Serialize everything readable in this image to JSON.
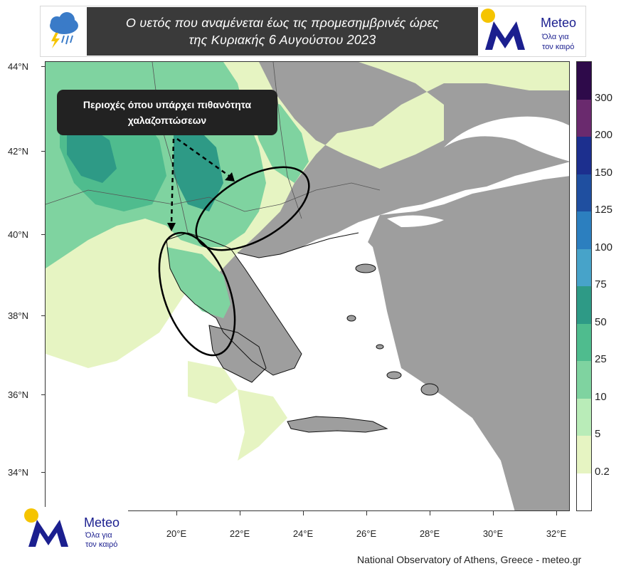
{
  "header": {
    "title_line1": "Ο υετός που αναμένεται έως τις προμεσημβρινές ώρες",
    "title_line2": "της Κυριακής 6 Αυγούστου 2023"
  },
  "logo": {
    "brand": "Meteo",
    "tagline_line1": "Όλα για",
    "tagline_line2": "τον καιρό"
  },
  "annotation": {
    "line1": "Περιοχές όπου υπάρχει πιθανότητα",
    "line2": "χαλαζοπτώσεων"
  },
  "axes": {
    "lat_labels": [
      "44°N",
      "42°N",
      "40°N",
      "38°N",
      "36°N",
      "34°N"
    ],
    "lon_labels": [
      "20°E",
      "22°E",
      "24°E",
      "26°E",
      "28°E",
      "30°E",
      "32°E"
    ]
  },
  "legend": {
    "labels": [
      "300",
      "200",
      "150",
      "125",
      "100",
      "75",
      "50",
      "25",
      "10",
      "5",
      "0.2"
    ],
    "colors": [
      "#2e0a4a",
      "#6a2a6e",
      "#1c2f8e",
      "#1f4fa0",
      "#2c7fbf",
      "#47a3c9",
      "#2e9a86",
      "#4fbc8e",
      "#7fd3a0",
      "#b9ecb8",
      "#e6f4c2",
      "#ffffff"
    ]
  },
  "colors": {
    "sea": "#ffffff",
    "land_dry": "#9e9e9e",
    "rain_light": "#e6f4c2",
    "rain_green": "#7fd3a0",
    "rain_teal": "#2e9a86",
    "brand_blue": "#1b1f8f",
    "brand_yellow": "#f5c400",
    "header_dark": "#3a3a3a"
  },
  "footer": {
    "credit": "National Observatory of Athens, Greece - meteo.gr"
  }
}
